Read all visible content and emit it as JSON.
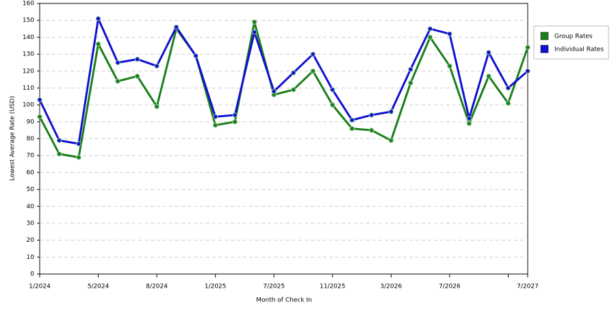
{
  "chart_data": {
    "type": "line",
    "x_label": "Month of Check In",
    "y_label": "Lowest Average Rate (USD)",
    "categories": [
      "1/2024",
      null,
      null,
      "5/2024",
      null,
      null,
      "8/2024",
      null,
      null,
      "1/2025",
      null,
      null,
      "7/2025",
      null,
      null,
      "11/2025",
      null,
      null,
      "3/2026",
      null,
      null,
      "7/2026",
      null,
      null,
      null,
      "7/2027"
    ],
    "series": [
      {
        "name": "Group Rates",
        "color": "#1a7f1a",
        "values": [
          93,
          71,
          69,
          136,
          114,
          117,
          99,
          145,
          129,
          88,
          90,
          149,
          106,
          109,
          120,
          100,
          86,
          85,
          79,
          113,
          140,
          123,
          89,
          117,
          101,
          134
        ]
      },
      {
        "name": "Individual Rates",
        "color": "#1010d0",
        "values": [
          103,
          79,
          77,
          151,
          125,
          127,
          123,
          146,
          129,
          93,
          94,
          143,
          108,
          119,
          130,
          109,
          91,
          94,
          96,
          121,
          145,
          142,
          92,
          131,
          110,
          120
        ]
      }
    ],
    "ylim": [
      0,
      160
    ],
    "yticks": [
      0,
      10,
      20,
      30,
      40,
      50,
      60,
      70,
      80,
      90,
      100,
      110,
      120,
      130,
      140,
      150,
      160
    ],
    "grid": true,
    "legend": "right"
  }
}
